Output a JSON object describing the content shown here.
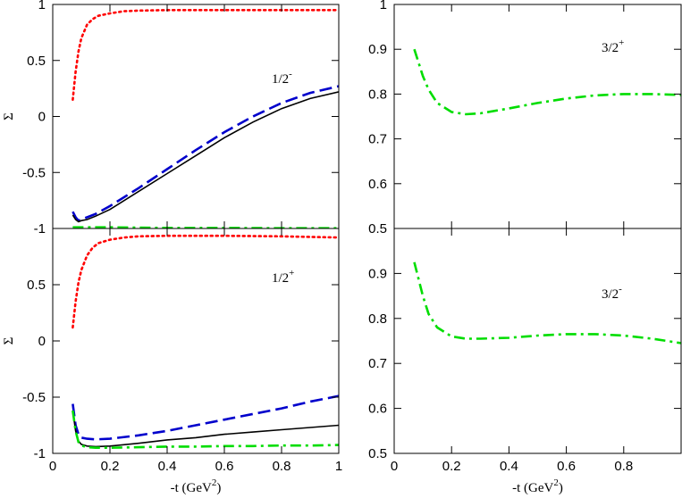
{
  "chart_data": [
    {
      "type": "line",
      "panel": "top-left",
      "label": "1/2",
      "label_sup": "-",
      "xlim": [
        0,
        1
      ],
      "ylim": [
        -1,
        1
      ],
      "yticks": [
        -1,
        -0.5,
        0,
        0.5,
        1
      ],
      "ytick_labels": [
        "-1",
        "-0.5",
        "0",
        "0.5",
        "1"
      ],
      "xticks": [
        0,
        0.2,
        0.4,
        0.6,
        0.8,
        1
      ],
      "ylabel": "Σ",
      "xlabel": "",
      "series": [
        {
          "name": "dotted-red",
          "color": "#ff0000",
          "style": "dotted",
          "x": [
            0.07,
            0.08,
            0.09,
            0.1,
            0.12,
            0.14,
            0.16,
            0.2,
            0.25,
            0.3,
            0.4,
            0.5,
            0.6,
            0.8,
            1.0
          ],
          "y": [
            0.15,
            0.4,
            0.58,
            0.7,
            0.82,
            0.87,
            0.9,
            0.92,
            0.94,
            0.945,
            0.95,
            0.95,
            0.95,
            0.95,
            0.95
          ]
        },
        {
          "name": "dashed-blue",
          "color": "#0000cc",
          "style": "dashed",
          "x": [
            0.07,
            0.08,
            0.09,
            0.1,
            0.12,
            0.15,
            0.2,
            0.3,
            0.4,
            0.5,
            0.6,
            0.7,
            0.8,
            0.9,
            1.0
          ],
          "y": [
            -0.85,
            -0.9,
            -0.93,
            -0.92,
            -0.9,
            -0.87,
            -0.8,
            -0.64,
            -0.47,
            -0.3,
            -0.14,
            0.0,
            0.12,
            0.21,
            0.27
          ]
        },
        {
          "name": "solid-black",
          "color": "#000000",
          "style": "solid",
          "x": [
            0.07,
            0.08,
            0.09,
            0.1,
            0.12,
            0.15,
            0.2,
            0.3,
            0.4,
            0.5,
            0.6,
            0.7,
            0.8,
            0.9,
            1.0
          ],
          "y": [
            -0.88,
            -0.92,
            -0.94,
            -0.93,
            -0.92,
            -0.89,
            -0.83,
            -0.67,
            -0.51,
            -0.35,
            -0.19,
            -0.05,
            0.07,
            0.16,
            0.22
          ]
        },
        {
          "name": "dashdot-green",
          "color": "#00dd00",
          "style": "dashdot",
          "x": [
            0.07,
            0.1,
            0.2,
            0.4,
            0.6,
            0.8,
            1.0
          ],
          "y": [
            -0.99,
            -0.99,
            -0.99,
            -0.995,
            -0.995,
            -0.998,
            -0.998
          ]
        }
      ]
    },
    {
      "type": "line",
      "panel": "top-right",
      "label": "3/2",
      "label_sup": "+",
      "xlim": [
        0,
        1
      ],
      "ylim": [
        0.5,
        1
      ],
      "yticks": [
        0.5,
        0.6,
        0.7,
        0.8,
        0.9,
        1
      ],
      "ytick_labels": [
        "0.5",
        "0.6",
        "0.7",
        "0.8",
        "0.9",
        "1"
      ],
      "xticks": [
        0,
        0.2,
        0.4,
        0.6,
        0.8
      ],
      "series": [
        {
          "name": "dashdot-green",
          "color": "#00dd00",
          "style": "dashdot",
          "x": [
            0.07,
            0.08,
            0.1,
            0.12,
            0.15,
            0.2,
            0.25,
            0.3,
            0.4,
            0.5,
            0.6,
            0.7,
            0.8,
            0.9,
            1.0
          ],
          "y": [
            0.9,
            0.88,
            0.84,
            0.81,
            0.78,
            0.76,
            0.755,
            0.757,
            0.768,
            0.78,
            0.79,
            0.797,
            0.8,
            0.8,
            0.798
          ]
        }
      ]
    },
    {
      "type": "line",
      "panel": "bottom-left",
      "label": "1/2",
      "label_sup": "+",
      "xlim": [
        0,
        1
      ],
      "ylim": [
        -1,
        1
      ],
      "yticks": [
        -1,
        -0.5,
        0,
        0.5
      ],
      "ytick_labels": [
        "-1",
        "-0.5",
        "0",
        "0.5"
      ],
      "xticks": [
        0,
        0.2,
        0.4,
        0.6,
        0.8,
        1
      ],
      "xtick_labels": [
        "0",
        "0.2",
        "0.4",
        "0.6",
        "0.8",
        "1"
      ],
      "ylabel": "Σ",
      "xlabel": "-t (GeV",
      "xlabel_sup": "2",
      "xlabel_end": ")",
      "series": [
        {
          "name": "dotted-red",
          "color": "#ff0000",
          "style": "dotted",
          "x": [
            0.07,
            0.08,
            0.09,
            0.1,
            0.12,
            0.14,
            0.16,
            0.2,
            0.25,
            0.3,
            0.4,
            0.5,
            0.6,
            0.8,
            1.0
          ],
          "y": [
            0.12,
            0.35,
            0.52,
            0.63,
            0.76,
            0.83,
            0.87,
            0.9,
            0.92,
            0.93,
            0.935,
            0.935,
            0.935,
            0.93,
            0.92
          ]
        },
        {
          "name": "dashed-blue",
          "color": "#0000cc",
          "style": "dashed",
          "x": [
            0.07,
            0.08,
            0.09,
            0.1,
            0.12,
            0.15,
            0.2,
            0.3,
            0.4,
            0.5,
            0.6,
            0.7,
            0.8,
            0.9,
            1.0
          ],
          "y": [
            -0.56,
            -0.75,
            -0.83,
            -0.86,
            -0.87,
            -0.875,
            -0.87,
            -0.84,
            -0.8,
            -0.75,
            -0.7,
            -0.65,
            -0.6,
            -0.54,
            -0.49
          ]
        },
        {
          "name": "solid-black",
          "color": "#000000",
          "style": "solid",
          "x": [
            0.07,
            0.08,
            0.09,
            0.1,
            0.12,
            0.15,
            0.2,
            0.3,
            0.4,
            0.5,
            0.6,
            0.7,
            0.8,
            0.9,
            1.0
          ],
          "y": [
            -0.62,
            -0.8,
            -0.89,
            -0.92,
            -0.935,
            -0.94,
            -0.935,
            -0.91,
            -0.88,
            -0.86,
            -0.83,
            -0.81,
            -0.79,
            -0.77,
            -0.75
          ]
        },
        {
          "name": "dashdot-green",
          "color": "#00dd00",
          "style": "dashdot",
          "x": [
            0.07,
            0.08,
            0.09,
            0.1,
            0.12,
            0.15,
            0.2,
            0.3,
            0.4,
            0.5,
            0.6,
            0.7,
            0.8,
            0.9,
            1.0
          ],
          "y": [
            -0.62,
            -0.8,
            -0.9,
            -0.93,
            -0.945,
            -0.95,
            -0.95,
            -0.945,
            -0.94,
            -0.94,
            -0.935,
            -0.935,
            -0.93,
            -0.93,
            -0.925
          ]
        }
      ]
    },
    {
      "type": "line",
      "panel": "bottom-right",
      "label": "3/2",
      "label_sup": "-",
      "xlim": [
        0,
        1
      ],
      "ylim": [
        0.5,
        1
      ],
      "yticks": [
        0.5,
        0.6,
        0.7,
        0.8,
        0.9
      ],
      "ytick_labels": [
        "0.5",
        "0.6",
        "0.7",
        "0.8",
        "0.9"
      ],
      "xticks": [
        0,
        0.2,
        0.4,
        0.6,
        0.8
      ],
      "xtick_labels": [
        "0",
        "0.2",
        "0.4",
        "0.6",
        "0.8"
      ],
      "xlabel": "-t (GeV",
      "xlabel_sup": "2",
      "xlabel_end": ")",
      "series": [
        {
          "name": "dashdot-green",
          "color": "#00dd00",
          "style": "dashdot",
          "x": [
            0.07,
            0.08,
            0.1,
            0.12,
            0.15,
            0.2,
            0.25,
            0.3,
            0.4,
            0.5,
            0.6,
            0.7,
            0.8,
            0.9,
            1.0
          ],
          "y": [
            0.925,
            0.9,
            0.85,
            0.81,
            0.78,
            0.76,
            0.755,
            0.755,
            0.757,
            0.762,
            0.765,
            0.765,
            0.762,
            0.755,
            0.745
          ]
        }
      ]
    }
  ]
}
